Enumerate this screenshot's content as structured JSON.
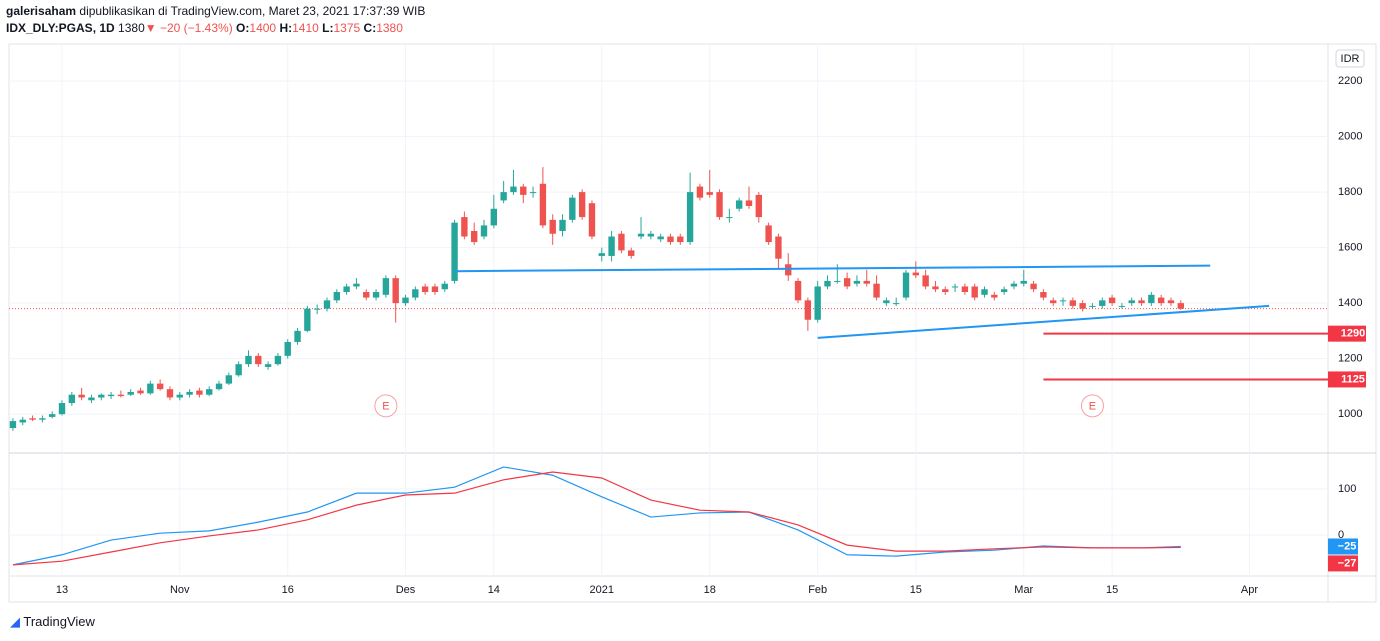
{
  "header": {
    "author": "galerisaham",
    "published": "dipublikasikan di TradingView.com, Maret 23, 2021 17:37:39 WIB",
    "symbol": "IDX_DLY:PGAS, 1D",
    "last": 1380,
    "change": "−20 (−1.43%)",
    "o_label": "O:",
    "open": 1400,
    "h_label": "H:",
    "high": 1410,
    "l_label": "L:",
    "low": 1375,
    "c_label": "C:",
    "close": 1380
  },
  "footer": {
    "brand": "TradingView"
  },
  "chart_data": {
    "type": "candlestick",
    "currency": "IDR",
    "up_color": "#26a69a",
    "down_color": "#ef5350",
    "grid": true,
    "xlim": [
      -0.3,
      134
    ],
    "xticks": [
      {
        "value": 5,
        "label": "13"
      },
      {
        "value": 17,
        "label": "Nov"
      },
      {
        "value": 28,
        "label": "16"
      },
      {
        "value": 40,
        "label": "Des"
      },
      {
        "value": 49,
        "label": "14"
      },
      {
        "value": 60,
        "label": "2021"
      },
      {
        "value": 71,
        "label": "18"
      },
      {
        "value": 82,
        "label": "Feb"
      },
      {
        "value": 92,
        "label": "15"
      },
      {
        "value": 103,
        "label": "Mar"
      },
      {
        "value": 112,
        "label": "15"
      },
      {
        "value": 126,
        "label": "Apr"
      }
    ],
    "ylim": [
      860,
      2330
    ],
    "yticks": [
      1000,
      1200,
      1400,
      1600,
      1800,
      2000,
      2200
    ],
    "candles": [
      [
        950,
        985,
        940,
        975
      ],
      [
        970,
        990,
        960,
        980
      ],
      [
        985,
        995,
        975,
        980
      ],
      [
        980,
        995,
        970,
        985
      ],
      [
        990,
        1010,
        985,
        1000
      ],
      [
        1000,
        1050,
        995,
        1040
      ],
      [
        1040,
        1080,
        1030,
        1070
      ],
      [
        1070,
        1095,
        1050,
        1060
      ],
      [
        1050,
        1070,
        1040,
        1060
      ],
      [
        1060,
        1075,
        1050,
        1070
      ],
      [
        1065,
        1080,
        1055,
        1070
      ],
      [
        1070,
        1085,
        1060,
        1065
      ],
      [
        1070,
        1090,
        1065,
        1080
      ],
      [
        1085,
        1095,
        1070,
        1075
      ],
      [
        1075,
        1120,
        1070,
        1110
      ],
      [
        1110,
        1125,
        1085,
        1090
      ],
      [
        1090,
        1100,
        1050,
        1060
      ],
      [
        1060,
        1080,
        1050,
        1070
      ],
      [
        1070,
        1090,
        1060,
        1080
      ],
      [
        1085,
        1095,
        1060,
        1070
      ],
      [
        1070,
        1100,
        1065,
        1090
      ],
      [
        1090,
        1120,
        1085,
        1110
      ],
      [
        1110,
        1150,
        1105,
        1140
      ],
      [
        1140,
        1190,
        1135,
        1180
      ],
      [
        1180,
        1230,
        1170,
        1210
      ],
      [
        1210,
        1220,
        1170,
        1180
      ],
      [
        1170,
        1190,
        1160,
        1180
      ],
      [
        1180,
        1220,
        1175,
        1210
      ],
      [
        1210,
        1270,
        1200,
        1260
      ],
      [
        1260,
        1310,
        1250,
        1300
      ],
      [
        1300,
        1390,
        1295,
        1380
      ],
      [
        1380,
        1395,
        1360,
        1380
      ],
      [
        1380,
        1420,
        1370,
        1410
      ],
      [
        1410,
        1450,
        1400,
        1440
      ],
      [
        1440,
        1470,
        1430,
        1460
      ],
      [
        1460,
        1490,
        1450,
        1470
      ],
      [
        1440,
        1450,
        1410,
        1420
      ],
      [
        1420,
        1450,
        1410,
        1440
      ],
      [
        1430,
        1500,
        1420,
        1490
      ],
      [
        1490,
        1500,
        1330,
        1400
      ],
      [
        1400,
        1430,
        1390,
        1420
      ],
      [
        1420,
        1460,
        1410,
        1450
      ],
      [
        1460,
        1470,
        1430,
        1440
      ],
      [
        1460,
        1470,
        1430,
        1440
      ],
      [
        1450,
        1480,
        1440,
        1470
      ],
      [
        1480,
        1700,
        1470,
        1690
      ],
      [
        1710,
        1730,
        1630,
        1640
      ],
      [
        1660,
        1690,
        1610,
        1620
      ],
      [
        1640,
        1700,
        1630,
        1680
      ],
      [
        1680,
        1790,
        1670,
        1740
      ],
      [
        1770,
        1840,
        1760,
        1800
      ],
      [
        1800,
        1880,
        1790,
        1820
      ],
      [
        1820,
        1830,
        1760,
        1790
      ],
      [
        1800,
        1820,
        1780,
        1800
      ],
      [
        1830,
        1890,
        1670,
        1680
      ],
      [
        1700,
        1720,
        1610,
        1650
      ],
      [
        1660,
        1720,
        1640,
        1700
      ],
      [
        1700,
        1790,
        1690,
        1780
      ],
      [
        1800,
        1810,
        1700,
        1710
      ],
      [
        1760,
        1770,
        1630,
        1640
      ],
      [
        1570,
        1600,
        1550,
        1580
      ],
      [
        1570,
        1660,
        1550,
        1640
      ],
      [
        1650,
        1660,
        1580,
        1590
      ],
      [
        1590,
        1600,
        1560,
        1570
      ],
      [
        1640,
        1710,
        1630,
        1650
      ],
      [
        1640,
        1660,
        1630,
        1650
      ],
      [
        1630,
        1650,
        1620,
        1640
      ],
      [
        1640,
        1650,
        1610,
        1620
      ],
      [
        1640,
        1650,
        1610,
        1620
      ],
      [
        1620,
        1870,
        1610,
        1800
      ],
      [
        1820,
        1830,
        1770,
        1780
      ],
      [
        1800,
        1880,
        1780,
        1790
      ],
      [
        1800,
        1810,
        1700,
        1710
      ],
      [
        1710,
        1740,
        1690,
        1710
      ],
      [
        1740,
        1780,
        1730,
        1770
      ],
      [
        1770,
        1820,
        1740,
        1750
      ],
      [
        1790,
        1800,
        1690,
        1710
      ],
      [
        1680,
        1690,
        1610,
        1620
      ],
      [
        1640,
        1650,
        1520,
        1560
      ],
      [
        1540,
        1580,
        1480,
        1500
      ],
      [
        1480,
        1490,
        1400,
        1410
      ],
      [
        1410,
        1420,
        1300,
        1340
      ],
      [
        1340,
        1480,
        1330,
        1460
      ],
      [
        1460,
        1500,
        1450,
        1480
      ],
      [
        1480,
        1540,
        1470,
        1480
      ],
      [
        1490,
        1510,
        1450,
        1460
      ],
      [
        1470,
        1500,
        1460,
        1480
      ],
      [
        1480,
        1520,
        1460,
        1470
      ],
      [
        1470,
        1500,
        1410,
        1420
      ],
      [
        1400,
        1420,
        1390,
        1410
      ],
      [
        1400,
        1420,
        1390,
        1400
      ],
      [
        1420,
        1520,
        1410,
        1510
      ],
      [
        1510,
        1550,
        1490,
        1500
      ],
      [
        1500,
        1520,
        1450,
        1460
      ],
      [
        1460,
        1480,
        1440,
        1450
      ],
      [
        1450,
        1460,
        1430,
        1440
      ],
      [
        1460,
        1470,
        1440,
        1460
      ],
      [
        1460,
        1470,
        1430,
        1440
      ],
      [
        1460,
        1470,
        1410,
        1420
      ],
      [
        1430,
        1460,
        1420,
        1450
      ],
      [
        1430,
        1440,
        1410,
        1420
      ],
      [
        1440,
        1460,
        1430,
        1450
      ],
      [
        1460,
        1480,
        1450,
        1470
      ],
      [
        1470,
        1520,
        1460,
        1480
      ],
      [
        1470,
        1480,
        1440,
        1450
      ],
      [
        1440,
        1450,
        1410,
        1420
      ],
      [
        1410,
        1420,
        1390,
        1400
      ],
      [
        1410,
        1420,
        1390,
        1410
      ],
      [
        1410,
        1420,
        1380,
        1390
      ],
      [
        1400,
        1410,
        1370,
        1380
      ],
      [
        1390,
        1400,
        1380,
        1390
      ],
      [
        1390,
        1420,
        1380,
        1410
      ],
      [
        1420,
        1430,
        1390,
        1400
      ],
      [
        1390,
        1400,
        1380,
        1390
      ],
      [
        1400,
        1420,
        1390,
        1410
      ],
      [
        1410,
        1420,
        1390,
        1400
      ],
      [
        1400,
        1440,
        1390,
        1430
      ],
      [
        1420,
        1430,
        1390,
        1400
      ],
      [
        1410,
        1420,
        1390,
        1400
      ],
      [
        1400,
        1410,
        1375,
        1380
      ]
    ],
    "last_price": 1380,
    "earnings": {
      "label": "E",
      "x": [
        38,
        110
      ],
      "price": 1030
    },
    "trendlines": [
      {
        "color": "#2196f3",
        "x": [
          45,
          122
        ],
        "y": [
          1515,
          1535
        ]
      },
      {
        "color": "#2196f3",
        "x": [
          82,
          128
        ],
        "y": [
          1275,
          1390
        ]
      }
    ],
    "levels": {
      "color": "#f23645",
      "x_start": 105,
      "values": [
        1290,
        1125
      ]
    },
    "indicator": {
      "ylim": [
        -87,
        174
      ],
      "yticks": [
        0,
        100
      ],
      "x": [
        0,
        5,
        10,
        15,
        20,
        25,
        30,
        35,
        40,
        45,
        50,
        55,
        60,
        65,
        70,
        75,
        80,
        85,
        90,
        95,
        100,
        105,
        110,
        115,
        119
      ],
      "series": [
        {
          "color": "#2196f3",
          "values": [
            -65,
            -43,
            -11,
            4,
            9,
            28,
            50,
            91,
            91,
            104,
            148,
            130,
            83,
            39,
            48,
            50,
            11,
            -43,
            -46,
            -37,
            -33,
            -24,
            -28,
            -28,
            -25
          ],
          "last": -25,
          "last_label": "−25"
        },
        {
          "color": "#f23645",
          "values": [
            -65,
            -57,
            -37,
            -17,
            -2,
            11,
            33,
            65,
            87,
            91,
            120,
            137,
            124,
            76,
            54,
            50,
            22,
            -22,
            -35,
            -35,
            -30,
            -26,
            -28,
            -28,
            -27
          ],
          "last": -27,
          "last_label": "−27"
        }
      ]
    }
  }
}
